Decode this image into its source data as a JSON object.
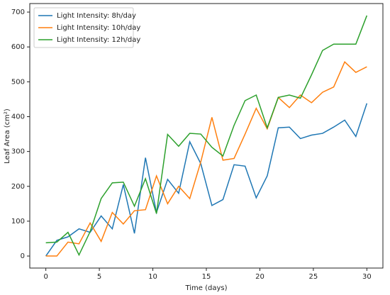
{
  "chart_data": {
    "type": "line",
    "x_label": "Time (days)",
    "y_label": "Leaf Area (cm²)",
    "x": [
      0,
      1.03,
      2.07,
      3.1,
      4.14,
      5.17,
      6.21,
      7.24,
      8.28,
      9.31,
      10.34,
      11.38,
      12.41,
      13.45,
      14.48,
      15.52,
      16.55,
      17.59,
      18.62,
      19.66,
      20.69,
      21.72,
      22.76,
      23.79,
      24.83,
      25.86,
      26.9,
      27.93,
      28.97,
      30
    ],
    "series": [
      {
        "name": "Light Intensity: 8h/day",
        "color": "#1f77b4",
        "values": [
          0,
          45,
          55,
          78,
          68,
          115,
          78,
          205,
          65,
          282,
          125,
          220,
          180,
          328,
          265,
          145,
          162,
          262,
          258,
          167,
          230,
          368,
          370,
          337,
          347,
          352,
          370,
          390,
          343,
          438
        ]
      },
      {
        "name": "Light Intensity: 10h/day",
        "color": "#ff7f0e",
        "values": [
          0,
          0,
          40,
          35,
          95,
          42,
          125,
          92,
          130,
          133,
          230,
          150,
          200,
          165,
          270,
          398,
          275,
          280,
          350,
          424,
          365,
          455,
          426,
          462,
          440,
          470,
          485,
          557,
          527,
          543
        ]
      },
      {
        "name": "Light Intensity: 12h/day",
        "color": "#2ca02c",
        "values": [
          38,
          40,
          68,
          3,
          70,
          165,
          210,
          212,
          143,
          222,
          122,
          349,
          315,
          352,
          350,
          312,
          287,
          375,
          446,
          462,
          368,
          455,
          462,
          453,
          520,
          590,
          608,
          608,
          608,
          690
        ]
      }
    ],
    "xlim": [
      -1.5,
      31.5
    ],
    "xticks": [
      0,
      5,
      10,
      15,
      20,
      25,
      30
    ],
    "ylim": [
      -34.5,
      724.5
    ],
    "yticks": [
      0,
      100,
      200,
      300,
      400,
      500,
      600,
      700
    ],
    "grid": false,
    "legend": "upper left"
  }
}
